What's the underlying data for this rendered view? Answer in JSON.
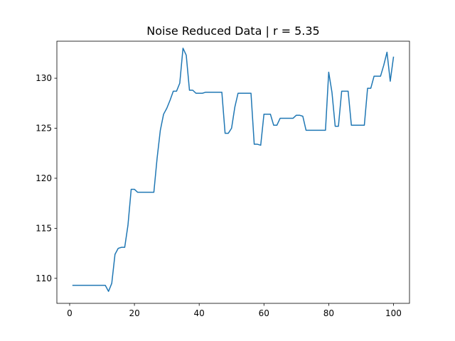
{
  "chart_data": {
    "type": "line",
    "title": "Noise Reduced Data | r = 5.35",
    "xlabel": "",
    "ylabel": "",
    "xlim": [
      -3.95,
      104.95
    ],
    "ylim": [
      107.5,
      133.7
    ],
    "grid": false,
    "legend": "none",
    "x_ticks": [
      0,
      20,
      40,
      60,
      80,
      100
    ],
    "x_tick_labels": [
      "0",
      "20",
      "40",
      "60",
      "80",
      "100"
    ],
    "y_ticks": [
      110,
      115,
      120,
      125,
      130
    ],
    "y_tick_labels": [
      "110",
      "115",
      "120",
      "125",
      "130"
    ],
    "series": [
      {
        "color": "#1f77b4",
        "x": [
          1,
          2,
          3,
          4,
          5,
          6,
          7,
          8,
          9,
          10,
          11,
          12,
          13,
          14,
          15,
          16,
          17,
          18,
          19,
          20,
          21,
          22,
          23,
          24,
          25,
          26,
          27,
          28,
          29,
          30,
          31,
          32,
          33,
          34,
          35,
          36,
          37,
          38,
          39,
          40,
          41,
          42,
          43,
          44,
          45,
          46,
          47,
          48,
          49,
          50,
          51,
          52,
          53,
          54,
          55,
          56,
          57,
          58,
          59,
          60,
          61,
          62,
          63,
          64,
          65,
          66,
          67,
          68,
          69,
          70,
          71,
          72,
          73,
          74,
          75,
          76,
          77,
          78,
          79,
          80,
          81,
          82,
          83,
          84,
          85,
          86,
          87,
          88,
          89,
          90,
          91,
          92,
          93,
          94,
          95,
          96,
          97,
          98,
          99,
          100
        ],
        "y": [
          109.3,
          109.3,
          109.3,
          109.3,
          109.3,
          109.3,
          109.3,
          109.3,
          109.3,
          109.3,
          109.3,
          108.7,
          109.5,
          112.4,
          113.0,
          113.1,
          113.1,
          115.3,
          118.9,
          118.9,
          118.6,
          118.6,
          118.6,
          118.6,
          118.6,
          118.6,
          122.0,
          124.8,
          126.4,
          127.0,
          127.8,
          128.7,
          128.7,
          129.5,
          133.0,
          132.3,
          128.8,
          128.8,
          128.5,
          128.5,
          128.5,
          128.6,
          128.6,
          128.6,
          128.6,
          128.6,
          128.6,
          124.5,
          124.5,
          125.0,
          127.1,
          128.5,
          128.5,
          128.5,
          128.5,
          128.5,
          123.4,
          123.4,
          123.3,
          126.4,
          126.4,
          126.4,
          125.3,
          125.3,
          126.0,
          126.0,
          126.0,
          126.0,
          126.0,
          126.3,
          126.3,
          126.2,
          124.8,
          124.8,
          124.8,
          124.8,
          124.8,
          124.8,
          124.8,
          130.6,
          128.6,
          125.2,
          125.2,
          128.7,
          128.7,
          128.7,
          125.3,
          125.3,
          125.3,
          125.3,
          125.3,
          129.0,
          129.0,
          130.2,
          130.2,
          130.2,
          131.3,
          132.6,
          129.7,
          132.1
        ]
      }
    ]
  }
}
